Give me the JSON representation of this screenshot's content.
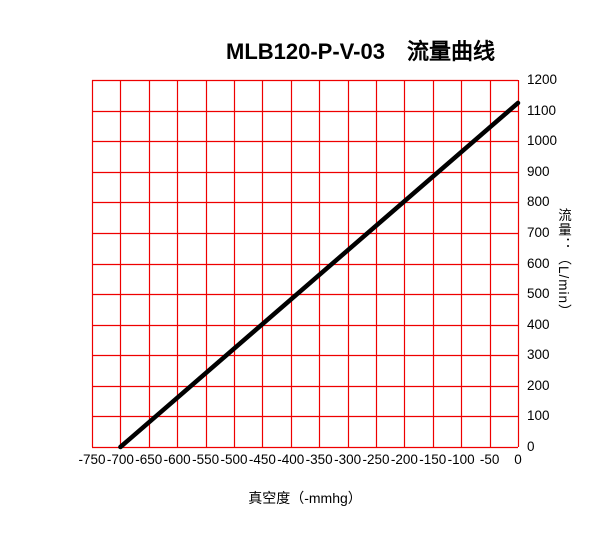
{
  "chart_data": {
    "type": "line",
    "title": "MLB120-P-V-03　流量曲线",
    "xlabel": "真空度（-mmhg）",
    "ylabel": "流量：（L/min）",
    "xlim": [
      -750,
      0
    ],
    "ylim": [
      0,
      1200
    ],
    "x_ticks": [
      -750,
      -700,
      -650,
      -600,
      -550,
      -500,
      -450,
      -400,
      -350,
      -300,
      -250,
      -200,
      -150,
      -100,
      -50,
      0
    ],
    "y_ticks": [
      0,
      100,
      200,
      300,
      400,
      500,
      600,
      700,
      800,
      900,
      1000,
      1100,
      1200
    ],
    "grid": true,
    "legend": "none",
    "series": [
      {
        "name": "流量曲线",
        "x": [
          -700,
          0
        ],
        "y": [
          0,
          1125
        ],
        "color": "#000000",
        "line_width": 4.5
      }
    ],
    "colors": {
      "grid": "#ee0000",
      "text": "#000000",
      "background": "#ffffff"
    }
  }
}
